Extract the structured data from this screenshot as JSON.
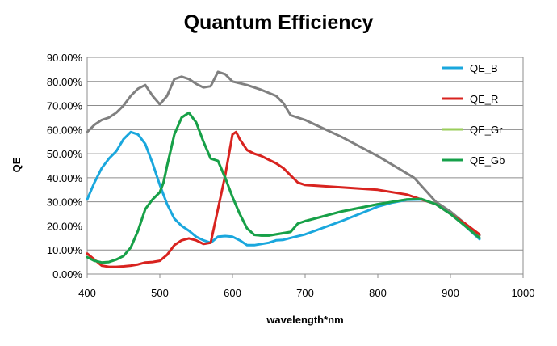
{
  "chart_data": {
    "type": "line",
    "title": "Quantum Efficiency",
    "xlabel": "wavelength*nm",
    "ylabel": "QE",
    "xlim": [
      400,
      1000
    ],
    "ylim": [
      0,
      0.9
    ],
    "x_ticks": [
      "400",
      "500",
      "600",
      "700",
      "800",
      "900",
      "1000"
    ],
    "y_ticks": [
      "0.00%",
      "10.00%",
      "20.00%",
      "30.00%",
      "40.00%",
      "50.00%",
      "60.00%",
      "70.00%",
      "80.00%",
      "90.00%"
    ],
    "grid": "horizontal",
    "legend_position": "right",
    "series": [
      {
        "name": "QE_B",
        "color": "#1aa7dd",
        "points": [
          [
            400,
            0.31
          ],
          [
            410,
            0.38
          ],
          [
            420,
            0.44
          ],
          [
            430,
            0.48
          ],
          [
            440,
            0.51
          ],
          [
            450,
            0.56
          ],
          [
            460,
            0.59
          ],
          [
            470,
            0.58
          ],
          [
            480,
            0.54
          ],
          [
            490,
            0.46
          ],
          [
            500,
            0.37
          ],
          [
            510,
            0.29
          ],
          [
            520,
            0.23
          ],
          [
            530,
            0.2
          ],
          [
            540,
            0.18
          ],
          [
            550,
            0.155
          ],
          [
            560,
            0.14
          ],
          [
            570,
            0.13
          ],
          [
            580,
            0.155
          ],
          [
            590,
            0.158
          ],
          [
            600,
            0.155
          ],
          [
            610,
            0.14
          ],
          [
            620,
            0.12
          ],
          [
            630,
            0.12
          ],
          [
            640,
            0.125
          ],
          [
            650,
            0.13
          ],
          [
            660,
            0.14
          ],
          [
            670,
            0.142
          ],
          [
            680,
            0.15
          ],
          [
            700,
            0.165
          ],
          [
            750,
            0.22
          ],
          [
            800,
            0.28
          ],
          [
            820,
            0.297
          ],
          [
            840,
            0.308
          ],
          [
            860,
            0.31
          ],
          [
            880,
            0.29
          ],
          [
            900,
            0.25
          ],
          [
            920,
            0.2
          ],
          [
            940,
            0.145
          ]
        ]
      },
      {
        "name": "QE_R",
        "color": "#d8231f",
        "points": [
          [
            400,
            0.085
          ],
          [
            410,
            0.06
          ],
          [
            420,
            0.035
          ],
          [
            430,
            0.03
          ],
          [
            440,
            0.03
          ],
          [
            450,
            0.032
          ],
          [
            460,
            0.035
          ],
          [
            470,
            0.04
          ],
          [
            480,
            0.048
          ],
          [
            490,
            0.05
          ],
          [
            500,
            0.055
          ],
          [
            510,
            0.08
          ],
          [
            520,
            0.12
          ],
          [
            530,
            0.14
          ],
          [
            540,
            0.148
          ],
          [
            550,
            0.14
          ],
          [
            560,
            0.125
          ],
          [
            570,
            0.13
          ],
          [
            580,
            0.27
          ],
          [
            590,
            0.41
          ],
          [
            600,
            0.58
          ],
          [
            605,
            0.59
          ],
          [
            610,
            0.56
          ],
          [
            620,
            0.515
          ],
          [
            630,
            0.5
          ],
          [
            640,
            0.49
          ],
          [
            650,
            0.475
          ],
          [
            660,
            0.46
          ],
          [
            670,
            0.44
          ],
          [
            680,
            0.41
          ],
          [
            690,
            0.38
          ],
          [
            700,
            0.37
          ],
          [
            750,
            0.36
          ],
          [
            800,
            0.35
          ],
          [
            840,
            0.33
          ],
          [
            860,
            0.31
          ],
          [
            880,
            0.29
          ],
          [
            900,
            0.25
          ],
          [
            920,
            0.21
          ],
          [
            940,
            0.165
          ]
        ]
      },
      {
        "name": "QE_Gr",
        "color": "#9acd5a",
        "points": [
          [
            400,
            0.07
          ],
          [
            410,
            0.055
          ],
          [
            420,
            0.048
          ],
          [
            430,
            0.05
          ],
          [
            440,
            0.06
          ],
          [
            450,
            0.075
          ],
          [
            460,
            0.11
          ],
          [
            470,
            0.18
          ],
          [
            480,
            0.27
          ],
          [
            490,
            0.31
          ],
          [
            500,
            0.34
          ],
          [
            505,
            0.38
          ],
          [
            510,
            0.45
          ],
          [
            520,
            0.58
          ],
          [
            530,
            0.65
          ],
          [
            540,
            0.67
          ],
          [
            550,
            0.63
          ],
          [
            560,
            0.55
          ],
          [
            570,
            0.48
          ],
          [
            580,
            0.47
          ],
          [
            590,
            0.4
          ],
          [
            600,
            0.32
          ],
          [
            610,
            0.25
          ],
          [
            620,
            0.19
          ],
          [
            630,
            0.163
          ],
          [
            640,
            0.16
          ],
          [
            650,
            0.16
          ],
          [
            660,
            0.165
          ],
          [
            670,
            0.17
          ],
          [
            680,
            0.175
          ],
          [
            690,
            0.21
          ],
          [
            700,
            0.22
          ],
          [
            750,
            0.26
          ],
          [
            800,
            0.29
          ],
          [
            840,
            0.31
          ],
          [
            860,
            0.312
          ],
          [
            880,
            0.29
          ],
          [
            900,
            0.25
          ],
          [
            920,
            0.2
          ],
          [
            940,
            0.15
          ]
        ]
      },
      {
        "name": "QE_Gb",
        "color": "#16a04a",
        "points": [
          [
            400,
            0.07
          ],
          [
            410,
            0.055
          ],
          [
            420,
            0.048
          ],
          [
            430,
            0.05
          ],
          [
            440,
            0.06
          ],
          [
            450,
            0.075
          ],
          [
            460,
            0.11
          ],
          [
            470,
            0.18
          ],
          [
            480,
            0.27
          ],
          [
            490,
            0.31
          ],
          [
            500,
            0.34
          ],
          [
            505,
            0.38
          ],
          [
            510,
            0.45
          ],
          [
            520,
            0.58
          ],
          [
            530,
            0.65
          ],
          [
            540,
            0.67
          ],
          [
            550,
            0.63
          ],
          [
            560,
            0.55
          ],
          [
            570,
            0.48
          ],
          [
            580,
            0.47
          ],
          [
            590,
            0.4
          ],
          [
            600,
            0.32
          ],
          [
            610,
            0.25
          ],
          [
            620,
            0.19
          ],
          [
            630,
            0.163
          ],
          [
            640,
            0.16
          ],
          [
            650,
            0.16
          ],
          [
            660,
            0.165
          ],
          [
            670,
            0.17
          ],
          [
            680,
            0.175
          ],
          [
            690,
            0.21
          ],
          [
            700,
            0.22
          ],
          [
            750,
            0.26
          ],
          [
            800,
            0.29
          ],
          [
            840,
            0.31
          ],
          [
            860,
            0.312
          ],
          [
            880,
            0.29
          ],
          [
            900,
            0.25
          ],
          [
            920,
            0.2
          ],
          [
            940,
            0.15
          ]
        ]
      },
      {
        "name": "",
        "color": "#808080",
        "points": [
          [
            400,
            0.59
          ],
          [
            410,
            0.62
          ],
          [
            420,
            0.64
          ],
          [
            430,
            0.65
          ],
          [
            440,
            0.67
          ],
          [
            450,
            0.7
          ],
          [
            460,
            0.74
          ],
          [
            470,
            0.77
          ],
          [
            480,
            0.785
          ],
          [
            490,
            0.74
          ],
          [
            500,
            0.705
          ],
          [
            510,
            0.74
          ],
          [
            520,
            0.81
          ],
          [
            530,
            0.82
          ],
          [
            540,
            0.81
          ],
          [
            550,
            0.79
          ],
          [
            560,
            0.775
          ],
          [
            570,
            0.78
          ],
          [
            580,
            0.84
          ],
          [
            590,
            0.83
          ],
          [
            600,
            0.8
          ],
          [
            620,
            0.785
          ],
          [
            640,
            0.765
          ],
          [
            660,
            0.74
          ],
          [
            670,
            0.71
          ],
          [
            680,
            0.66
          ],
          [
            700,
            0.64
          ],
          [
            750,
            0.57
          ],
          [
            800,
            0.49
          ],
          [
            850,
            0.4
          ],
          [
            880,
            0.3
          ],
          [
            900,
            0.26
          ],
          [
            920,
            0.21
          ],
          [
            940,
            0.16
          ]
        ]
      }
    ]
  }
}
